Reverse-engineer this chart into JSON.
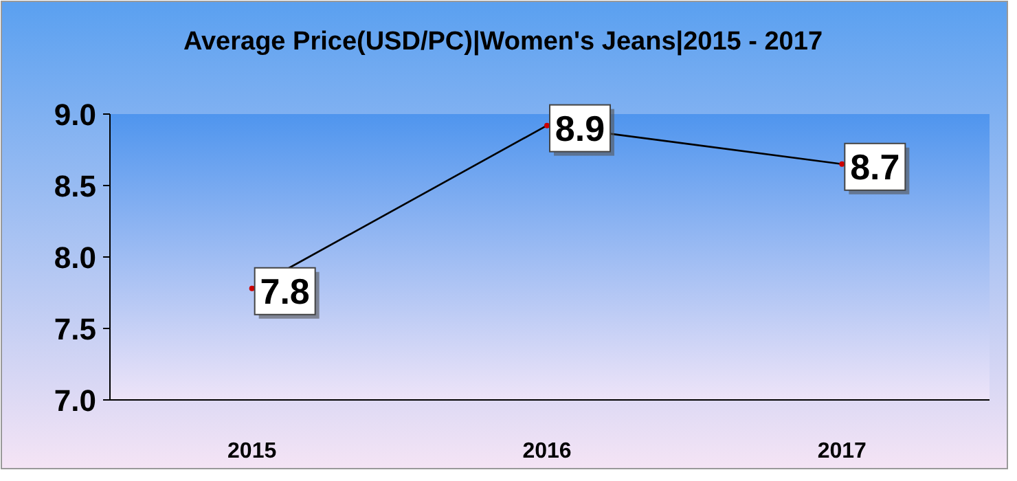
{
  "chart_data": {
    "type": "line",
    "title": "Average Price(USD/PC)|Women's Jeans|2015 - 2017",
    "categories": [
      "2015",
      "2016",
      "2017"
    ],
    "series": [
      {
        "color": "#000000",
        "values": [
          7.78,
          8.92,
          8.65
        ],
        "value_labels": [
          "7.8",
          "8.9",
          "8.7"
        ]
      }
    ],
    "ylim": [
      7,
      9
    ],
    "yticks": [
      {
        "value": 7,
        "label": "7.0"
      },
      {
        "value": 7.5,
        "label": "7.5"
      },
      {
        "value": 8,
        "label": "8.0"
      },
      {
        "value": 8.5,
        "label": "8.5"
      },
      {
        "value": 9,
        "label": "9.0"
      }
    ],
    "marker": "circle"
  }
}
